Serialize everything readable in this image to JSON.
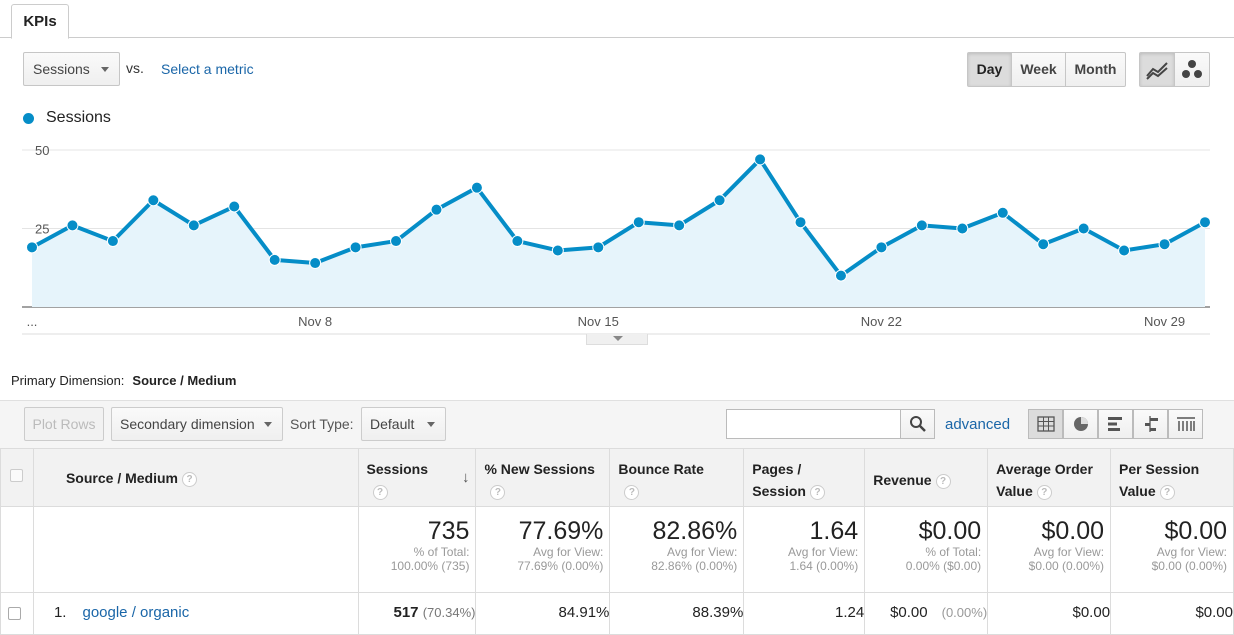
{
  "tabs": {
    "kpis": "KPIs"
  },
  "metric_bar": {
    "metric_select": "Sessions",
    "vs_label": "vs.",
    "compare_link": "Select a metric"
  },
  "granularity": {
    "day": "Day",
    "week": "Week",
    "month": "Month",
    "selected": "Day"
  },
  "chart_data": {
    "type": "area",
    "series": [
      {
        "name": "Sessions",
        "values": [
          19,
          26,
          21,
          34,
          26,
          32,
          15,
          14,
          19,
          21,
          31,
          38,
          21,
          18,
          19,
          27,
          26,
          34,
          47,
          27,
          10,
          19,
          26,
          25,
          30,
          20,
          25,
          18,
          20,
          27
        ]
      }
    ],
    "x_tick_labels": [
      "...",
      "Nov 8",
      "Nov 15",
      "Nov 22",
      "Nov 29"
    ],
    "y_tick_labels": [
      "25",
      "50"
    ],
    "ylim": [
      0,
      50
    ],
    "color": "#058dc7",
    "fill_color": "#e6f4fb",
    "grid": true
  },
  "primary_dimension": {
    "label": "Primary Dimension:",
    "value": "Source / Medium"
  },
  "toolbar": {
    "plot_rows": "Plot Rows",
    "secondary_dimension": "Secondary dimension",
    "sort_type_label": "Sort Type:",
    "sort_type_value": "Default",
    "search_value": "",
    "advanced": "advanced"
  },
  "table": {
    "headers": {
      "dimension": "Source / Medium",
      "sessions": "Sessions",
      "new_sessions": "% New Sessions",
      "bounce_rate": "Bounce Rate",
      "pages_session_1": "Pages /",
      "pages_session_2": "Session",
      "revenue": "Revenue",
      "aov_1": "Average Order",
      "aov_2": "Value",
      "psv_1": "Per Session",
      "psv_2": "Value"
    },
    "totals": {
      "sessions": {
        "value": "735",
        "sub1": "% of Total:",
        "sub2": "100.00% (735)"
      },
      "new_sessions": {
        "value": "77.69%",
        "sub1": "Avg for View:",
        "sub2": "77.69% (0.00%)"
      },
      "bounce_rate": {
        "value": "82.86%",
        "sub1": "Avg for View:",
        "sub2": "82.86% (0.00%)"
      },
      "pages_session": {
        "value": "1.64",
        "sub1": "Avg for View:",
        "sub2": "1.64 (0.00%)"
      },
      "revenue": {
        "value": "$0.00",
        "sub1": "% of Total:",
        "sub2": "0.00% ($0.00)"
      },
      "aov": {
        "value": "$0.00",
        "sub1": "Avg for View:",
        "sub2": "$0.00 (0.00%)"
      },
      "psv": {
        "value": "$0.00",
        "sub1": "Avg for View:",
        "sub2": "$0.00 (0.00%)"
      }
    },
    "rows": [
      {
        "index": "1.",
        "dimension": "google / organic",
        "sessions": "517",
        "sessions_pct": "(70.34%)",
        "new_sessions": "84.91%",
        "bounce_rate": "88.39%",
        "pages_session": "1.24",
        "revenue": "$0.00",
        "revenue_pct": "(0.00%)",
        "aov": "$0.00",
        "psv": "$0.00"
      }
    ]
  }
}
